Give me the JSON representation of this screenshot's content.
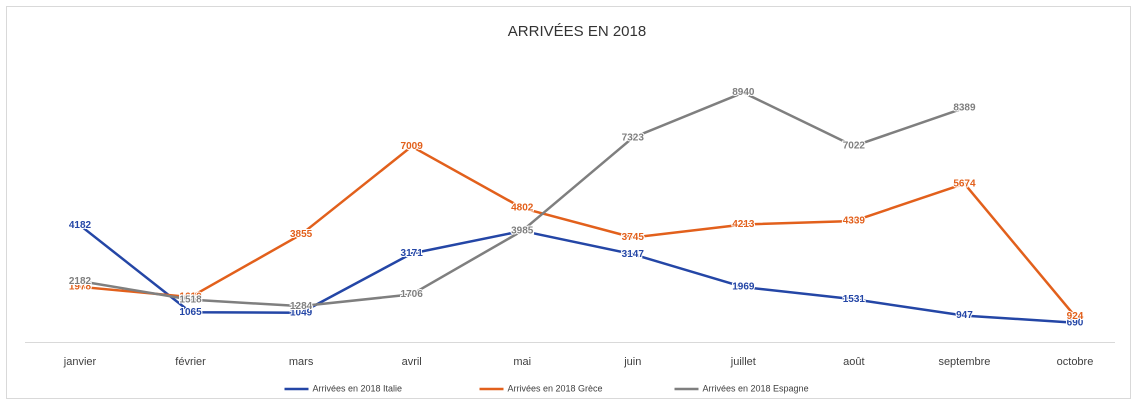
{
  "chart_data": {
    "type": "line",
    "title": "ARRIVÉES EN 2018",
    "categories": [
      "janvier",
      "février",
      "mars",
      "avril",
      "mai",
      "juin",
      "juillet",
      "août",
      "septembre",
      "octobre"
    ],
    "series": [
      {
        "name": "Arrivées en 2018 Italie",
        "color": "#2446a6",
        "values": [
          4182,
          1065,
          1049,
          3171,
          3981,
          3147,
          1969,
          1531,
          947,
          690
        ]
      },
      {
        "name": "Arrivées en 2018 Grèce",
        "color": "#e2601c",
        "values": [
          1978,
          1610,
          3855,
          7009,
          4802,
          3745,
          4213,
          4339,
          5674,
          924
        ]
      },
      {
        "name": "Arrivées en 2018 Espagne",
        "color": "#7f7f7f",
        "values": [
          2182,
          1518,
          1284,
          1706,
          3985,
          7323,
          8940,
          7022,
          8389,
          null
        ]
      }
    ],
    "ylim": [
      0,
      10000
    ]
  }
}
